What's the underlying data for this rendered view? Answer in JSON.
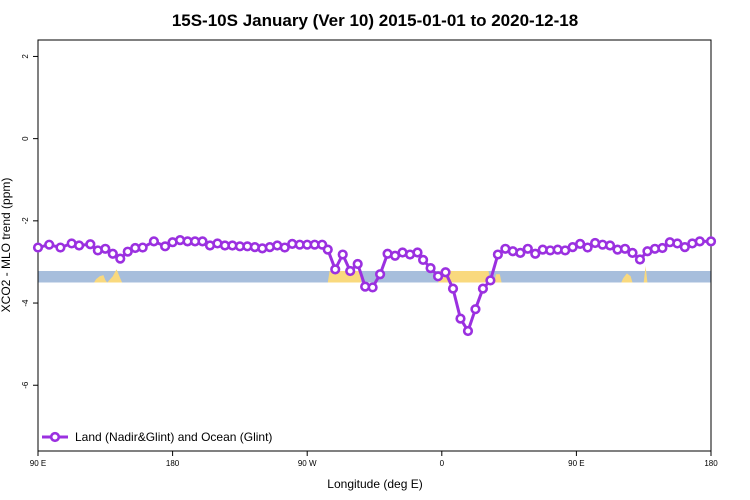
{
  "chart_data": {
    "type": "line",
    "title": "15S-10S January (Ver 10)   2015-01-01 to 2020-12-18",
    "xlabel": "Longitude (deg E)",
    "ylabel": "XCO2 - MLO trend (ppm)",
    "xlim": [
      90,
      450
    ],
    "ylim": [
      -7.6,
      2.4
    ],
    "x_ticks": [
      {
        "value": 90,
        "label": "90 E"
      },
      {
        "value": 162,
        "label": "180"
      },
      {
        "value": 234,
        "label": "90 W"
      },
      {
        "value": 306,
        "label": "0"
      },
      {
        "value": 378,
        "label": "90 E"
      },
      {
        "value": 450,
        "label": "180"
      }
    ],
    "y_ticks": [
      {
        "value": 2,
        "label": "2"
      },
      {
        "value": 0,
        "label": "0"
      },
      {
        "value": -2,
        "label": "-2"
      },
      {
        "value": -4,
        "label": "-4"
      },
      {
        "value": -6,
        "label": "-6"
      }
    ],
    "grid": false,
    "legend_position": "bottom-left",
    "colors": {
      "series": "#9b30e0",
      "ocean_band": "#a7bedc",
      "land": "#f9d97e"
    },
    "band": {
      "ymin": -3.5,
      "ymax": -3.22
    },
    "land_segments": [
      {
        "x": [
          120,
          121,
          123,
          125,
          126,
          127,
          130,
          132,
          134,
          135
        ],
        "y": [
          -3.5,
          -3.42,
          -3.35,
          -3.32,
          -3.44,
          -3.5,
          -3.35,
          -3.18,
          -3.4,
          -3.5
        ]
      },
      {
        "x": [
          245,
          246,
          262,
          263
        ],
        "y": [
          -3.5,
          -3.22,
          -3.22,
          -3.5
        ]
      },
      {
        "x": [
          304,
          305,
          331,
          332
        ],
        "y": [
          -3.5,
          -3.22,
          -3.22,
          -3.5
        ]
      },
      {
        "x": [
          334,
          335,
          337,
          338
        ],
        "y": [
          -3.5,
          -3.3,
          -3.3,
          -3.5
        ]
      },
      {
        "x": [
          402,
          403,
          405,
          407,
          408
        ],
        "y": [
          -3.5,
          -3.4,
          -3.28,
          -3.35,
          -3.5
        ]
      },
      {
        "x": [
          414,
          415,
          416
        ],
        "y": [
          -3.5,
          -3.1,
          -3.5
        ]
      }
    ],
    "series": [
      {
        "name": "Land (Nadir&Glint) and Ocean (Glint)",
        "x": [
          90,
          96,
          102,
          108,
          112,
          118,
          122,
          126,
          130,
          134,
          138,
          142,
          146,
          152,
          158,
          162,
          166,
          170,
          174,
          178,
          182,
          186,
          190,
          194,
          198,
          202,
          206,
          210,
          214,
          218,
          222,
          226,
          230,
          234,
          238,
          242,
          245,
          249,
          253,
          257,
          261,
          265,
          269,
          273,
          277,
          281,
          285,
          289,
          293,
          296,
          300,
          304,
          308,
          312,
          316,
          320,
          324,
          328,
          332,
          336,
          340,
          344,
          348,
          352,
          356,
          360,
          364,
          368,
          372,
          376,
          380,
          384,
          388,
          392,
          396,
          400,
          404,
          408,
          412,
          416,
          420,
          424,
          428,
          432,
          436,
          440,
          444,
          450
        ],
        "y": [
          -2.65,
          -2.58,
          -2.65,
          -2.55,
          -2.6,
          -2.57,
          -2.72,
          -2.68,
          -2.8,
          -2.92,
          -2.75,
          -2.66,
          -2.65,
          -2.5,
          -2.62,
          -2.52,
          -2.47,
          -2.5,
          -2.5,
          -2.5,
          -2.6,
          -2.55,
          -2.6,
          -2.6,
          -2.62,
          -2.62,
          -2.64,
          -2.67,
          -2.64,
          -2.6,
          -2.65,
          -2.56,
          -2.58,
          -2.58,
          -2.58,
          -2.58,
          -2.7,
          -3.18,
          -2.82,
          -3.22,
          -3.05,
          -3.6,
          -3.62,
          -3.3,
          -2.8,
          -2.85,
          -2.77,
          -2.82,
          -2.77,
          -2.95,
          -3.15,
          -3.35,
          -3.25,
          -3.65,
          -4.38,
          -4.68,
          -4.15,
          -3.65,
          -3.45,
          -2.82,
          -2.68,
          -2.74,
          -2.78,
          -2.68,
          -2.8,
          -2.7,
          -2.72,
          -2.7,
          -2.72,
          -2.64,
          -2.56,
          -2.65,
          -2.54,
          -2.58,
          -2.6,
          -2.7,
          -2.68,
          -2.78,
          -2.94,
          -2.74,
          -2.68,
          -2.66,
          -2.52,
          -2.55,
          -2.64,
          -2.55,
          -2.5,
          -2.5
        ]
      }
    ]
  }
}
